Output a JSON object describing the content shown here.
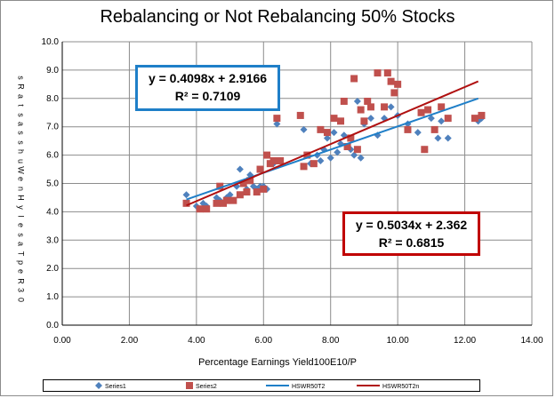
{
  "chart_data": {
    "type": "scatter",
    "title": "Rebalancing or Not Rebalancing 50% Stocks",
    "xlabel": "Percentage Earnings  Yield100E10/P",
    "ylabel": "sRatsasshuWenHylesaTpeR30",
    "xlim": [
      0,
      14
    ],
    "ylim": [
      0,
      10
    ],
    "xticks": [
      "0.00",
      "2.00",
      "4.00",
      "6.00",
      "8.00",
      "10.00",
      "12.00",
      "14.00"
    ],
    "yticks": [
      "0.0",
      "1.0",
      "2.0",
      "3.0",
      "4.0",
      "5.0",
      "6.0",
      "7.0",
      "8.0",
      "9.0",
      "10.0"
    ],
    "grid": true,
    "series": [
      {
        "name": "Series1",
        "marker": "diamond",
        "color": "#4f81bd",
        "points": [
          [
            3.7,
            4.6
          ],
          [
            4.0,
            4.2
          ],
          [
            4.2,
            4.3
          ],
          [
            4.3,
            4.2
          ],
          [
            4.6,
            4.5
          ],
          [
            4.7,
            4.4
          ],
          [
            4.9,
            4.5
          ],
          [
            5.0,
            4.6
          ],
          [
            5.2,
            4.9
          ],
          [
            5.3,
            5.5
          ],
          [
            5.4,
            5.0
          ],
          [
            5.5,
            4.8
          ],
          [
            5.6,
            5.3
          ],
          [
            5.7,
            4.9
          ],
          [
            5.8,
            4.8
          ],
          [
            5.9,
            4.9
          ],
          [
            6.0,
            4.9
          ],
          [
            6.1,
            4.8
          ],
          [
            6.3,
            5.7
          ],
          [
            6.4,
            7.1
          ],
          [
            7.2,
            6.9
          ],
          [
            7.4,
            5.7
          ],
          [
            7.6,
            6.0
          ],
          [
            7.7,
            5.8
          ],
          [
            7.8,
            6.2
          ],
          [
            7.9,
            6.6
          ],
          [
            8.0,
            5.9
          ],
          [
            8.1,
            6.8
          ],
          [
            8.2,
            6.1
          ],
          [
            8.3,
            6.4
          ],
          [
            8.4,
            6.7
          ],
          [
            8.6,
            6.2
          ],
          [
            8.7,
            6.0
          ],
          [
            8.8,
            7.9
          ],
          [
            8.9,
            5.9
          ],
          [
            9.0,
            7.1
          ],
          [
            9.2,
            7.3
          ],
          [
            9.4,
            6.7
          ],
          [
            9.6,
            7.3
          ],
          [
            9.8,
            7.7
          ],
          [
            10.0,
            7.4
          ],
          [
            10.3,
            7.1
          ],
          [
            10.6,
            6.8
          ],
          [
            10.8,
            6.2
          ],
          [
            11.0,
            7.3
          ],
          [
            11.2,
            6.6
          ],
          [
            11.3,
            7.2
          ],
          [
            11.5,
            6.6
          ],
          [
            12.4,
            7.2
          ],
          [
            12.5,
            7.3
          ]
        ]
      },
      {
        "name": "Series2",
        "marker": "square",
        "color": "#c0504d",
        "points": [
          [
            3.7,
            4.3
          ],
          [
            4.1,
            4.1
          ],
          [
            4.3,
            4.1
          ],
          [
            4.6,
            4.3
          ],
          [
            4.7,
            4.9
          ],
          [
            4.8,
            4.3
          ],
          [
            4.9,
            4.4
          ],
          [
            5.1,
            4.4
          ],
          [
            5.3,
            4.6
          ],
          [
            5.4,
            5.0
          ],
          [
            5.5,
            4.7
          ],
          [
            5.6,
            5.1
          ],
          [
            5.8,
            4.7
          ],
          [
            5.9,
            5.5
          ],
          [
            6.0,
            4.8
          ],
          [
            6.1,
            6.0
          ],
          [
            6.2,
            5.7
          ],
          [
            6.3,
            5.8
          ],
          [
            6.4,
            7.3
          ],
          [
            6.5,
            5.8
          ],
          [
            7.1,
            7.4
          ],
          [
            7.2,
            5.6
          ],
          [
            7.3,
            6.0
          ],
          [
            7.5,
            5.7
          ],
          [
            7.7,
            6.9
          ],
          [
            7.9,
            6.8
          ],
          [
            8.1,
            7.3
          ],
          [
            8.3,
            7.2
          ],
          [
            8.4,
            7.9
          ],
          [
            8.5,
            6.3
          ],
          [
            8.6,
            6.6
          ],
          [
            8.7,
            8.7
          ],
          [
            8.8,
            6.2
          ],
          [
            8.9,
            7.6
          ],
          [
            9.0,
            7.2
          ],
          [
            9.1,
            7.9
          ],
          [
            9.2,
            7.7
          ],
          [
            9.4,
            8.9
          ],
          [
            9.6,
            7.7
          ],
          [
            9.7,
            8.9
          ],
          [
            9.8,
            8.6
          ],
          [
            9.9,
            8.2
          ],
          [
            10.0,
            8.5
          ],
          [
            10.3,
            6.9
          ],
          [
            10.7,
            7.5
          ],
          [
            10.8,
            6.2
          ],
          [
            10.9,
            7.6
          ],
          [
            11.1,
            6.9
          ],
          [
            11.3,
            7.7
          ],
          [
            11.5,
            7.3
          ],
          [
            12.3,
            7.3
          ],
          [
            12.5,
            7.4
          ]
        ]
      },
      {
        "name": "HSWR50T2",
        "type": "trendline",
        "color": "#1f7fc8",
        "slope": 0.4098,
        "intercept": 2.9166,
        "x_range": [
          3.7,
          12.4
        ]
      },
      {
        "name": "HSWR50T2n",
        "type": "trendline",
        "color": "#b01010",
        "slope": 0.5034,
        "intercept": 2.362,
        "x_range": [
          3.7,
          12.4
        ]
      }
    ],
    "annotations": [
      {
        "id": "blue",
        "equation": "y = 0.4098x + 2.9166",
        "r2": "R² = 0.7109",
        "color": "#1f7fc8"
      },
      {
        "id": "red",
        "equation": "y = 0.5034x + 2.362",
        "r2": "R² = 0.6815",
        "color": "#c00000"
      }
    ],
    "legend_position": "bottom"
  }
}
